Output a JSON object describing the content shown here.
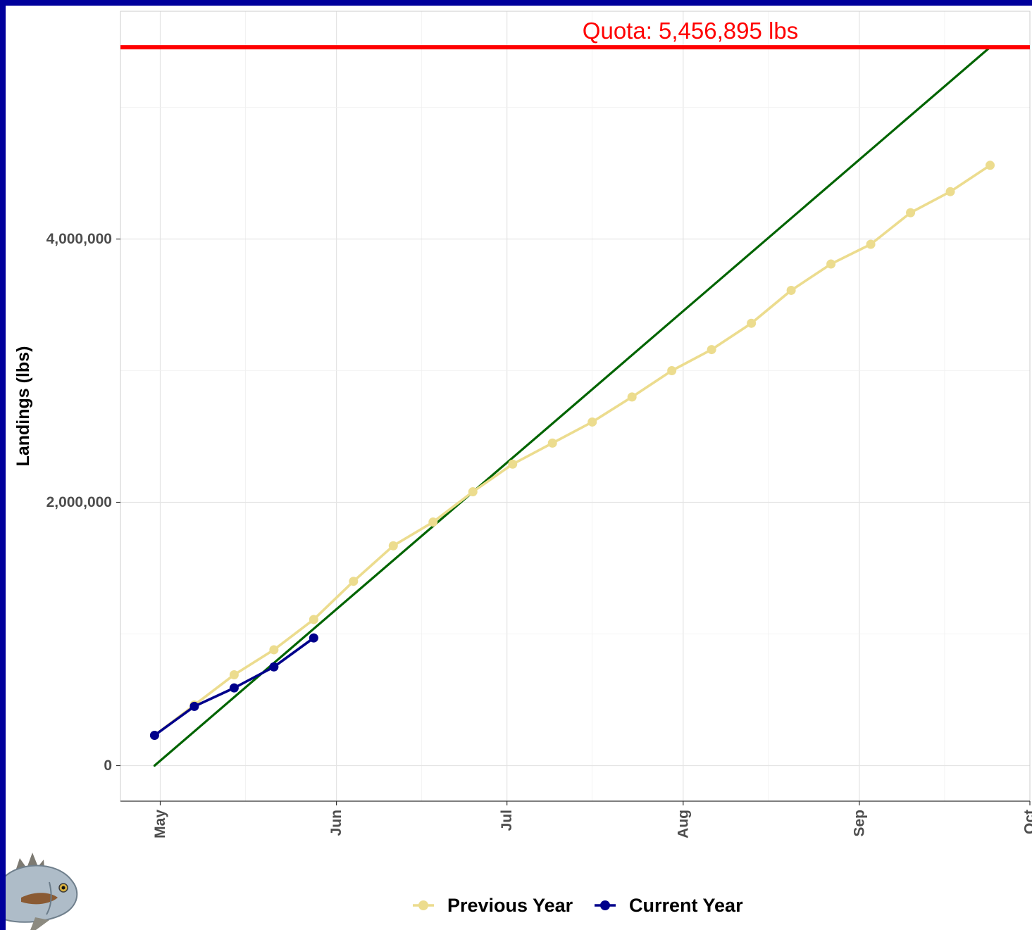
{
  "chart_data": {
    "type": "line",
    "title": "",
    "xlabel": "",
    "ylabel": "Landings (lbs)",
    "x_ticks": [
      "May",
      "Jun",
      "Jul",
      "Aug",
      "Sep",
      "Oct"
    ],
    "x_range": [
      "2000-04-24",
      "2000-10-01"
    ],
    "y_ticks": [
      0,
      2000000,
      4000000
    ],
    "y_tick_labels": [
      "0",
      "2,000,000",
      "4,000,000"
    ],
    "ylim": [
      -270000,
      5730000
    ],
    "grid": true,
    "legend_position": "bottom",
    "quota": {
      "value": 5456895,
      "label": "Quota: 5,456,895 lbs",
      "color": "#ff0000"
    },
    "series": [
      {
        "name": "Previous Year",
        "color": "#ecdc8e",
        "marker": "circle",
        "points": [
          {
            "x": "2000-04-30",
            "y": 230000
          },
          {
            "x": "2000-05-07",
            "y": 460000
          },
          {
            "x": "2000-05-14",
            "y": 690000
          },
          {
            "x": "2000-05-21",
            "y": 880000
          },
          {
            "x": "2000-05-28",
            "y": 1110000
          },
          {
            "x": "2000-06-04",
            "y": 1400000
          },
          {
            "x": "2000-06-11",
            "y": 1670000
          },
          {
            "x": "2000-06-18",
            "y": 1850000
          },
          {
            "x": "2000-06-25",
            "y": 2080000
          },
          {
            "x": "2000-07-02",
            "y": 2290000
          },
          {
            "x": "2000-07-09",
            "y": 2450000
          },
          {
            "x": "2000-07-16",
            "y": 2610000
          },
          {
            "x": "2000-07-23",
            "y": 2800000
          },
          {
            "x": "2000-07-30",
            "y": 3000000
          },
          {
            "x": "2000-08-06",
            "y": 3160000
          },
          {
            "x": "2000-08-13",
            "y": 3360000
          },
          {
            "x": "2000-08-20",
            "y": 3610000
          },
          {
            "x": "2000-08-27",
            "y": 3810000
          },
          {
            "x": "2000-09-03",
            "y": 3960000
          },
          {
            "x": "2000-09-10",
            "y": 4200000
          },
          {
            "x": "2000-09-17",
            "y": 4360000
          },
          {
            "x": "2000-09-24",
            "y": 4560000
          }
        ]
      },
      {
        "name": "Current Year",
        "color": "#00008b",
        "marker": "circle",
        "points": [
          {
            "x": "2000-04-30",
            "y": 230000
          },
          {
            "x": "2000-05-07",
            "y": 450000
          },
          {
            "x": "2000-05-14",
            "y": 590000
          },
          {
            "x": "2000-05-21",
            "y": 750000
          },
          {
            "x": "2000-05-28",
            "y": 970000
          }
        ]
      },
      {
        "color": "#006400",
        "marker": "none",
        "points": [
          {
            "x": "2000-04-30",
            "y": 0
          },
          {
            "x": "2000-09-24",
            "y": 5456895
          }
        ]
      }
    ]
  }
}
